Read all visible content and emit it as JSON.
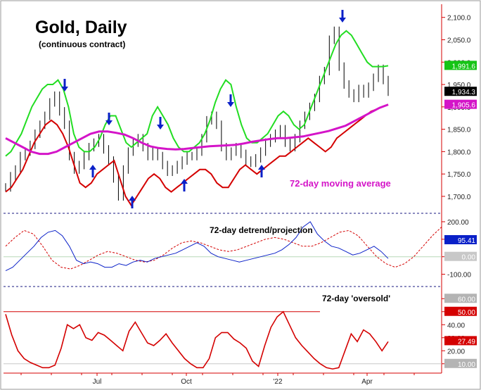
{
  "chart_data": [
    {
      "type": "line",
      "title": "Gold, Daily",
      "subtitle": "(continuous contract)",
      "panel": "price",
      "annotation": "72-day moving average",
      "x_tick_labels": [
        "Jul",
        "Oct",
        "'22",
        "Apr"
      ],
      "y_tick_labels": [
        "1,700.0",
        "1,750.0",
        "1,800.0",
        "1,850.0",
        "1,900.0",
        "1,950.0",
        "2,000.0",
        "2,050.0",
        "2,100.0"
      ],
      "ylim": [
        1670,
        2120
      ],
      "colors": {
        "price": "#000000",
        "upper_band": "#22dd22",
        "lower_band": "#d40000",
        "ma": "#d414c8",
        "arrow": "#0a20c8"
      },
      "series": [
        {
          "name": "Price",
          "values": [
            1720,
            1745,
            1760,
            1790,
            1800,
            1815,
            1840,
            1860,
            1880,
            1910,
            1925,
            1890,
            1860,
            1790,
            1760,
            1770,
            1790,
            1810,
            1820,
            1830,
            1805,
            1780,
            1740,
            1700,
            1760,
            1800,
            1820,
            1830,
            1810,
            1790,
            1800,
            1790,
            1770,
            1755,
            1760,
            1770,
            1780,
            1790,
            1790,
            1800,
            1830,
            1870,
            1880,
            1860,
            1810,
            1790,
            1800,
            1810,
            1795,
            1780,
            1775,
            1785,
            1800,
            1820,
            1830,
            1840,
            1850,
            1820,
            1810,
            1830,
            1860,
            1880,
            1900,
            1920,
            1960,
            1980,
            2050,
            2070,
            1990,
            1950,
            1930,
            1920,
            1940,
            1930,
            1945,
            1965,
            1985,
            1960,
            1934
          ]
        },
        {
          "name": "Upper band",
          "values": [
            1790,
            1800,
            1820,
            1840,
            1870,
            1900,
            1920,
            1940,
            1950,
            1950,
            1960,
            1940,
            1900,
            1840,
            1810,
            1800,
            1800,
            1810,
            1830,
            1860,
            1880,
            1880,
            1850,
            1820,
            1810,
            1820,
            1830,
            1840,
            1880,
            1900,
            1880,
            1860,
            1830,
            1810,
            1800,
            1800,
            1810,
            1820,
            1840,
            1870,
            1910,
            1940,
            1960,
            1950,
            1900,
            1860,
            1830,
            1820,
            1820,
            1830,
            1840,
            1860,
            1880,
            1890,
            1880,
            1860,
            1850,
            1860,
            1890,
            1920,
            1950,
            1980,
            2010,
            2040,
            2060,
            2070,
            2060,
            2040,
            2020,
            2000,
            1990,
            1990,
            1990,
            1992
          ]
        },
        {
          "name": "Lower band",
          "values": [
            1710,
            1720,
            1740,
            1760,
            1790,
            1820,
            1840,
            1860,
            1870,
            1860,
            1840,
            1810,
            1770,
            1730,
            1720,
            1730,
            1750,
            1760,
            1770,
            1780,
            1740,
            1700,
            1680,
            1700,
            1720,
            1740,
            1750,
            1740,
            1720,
            1710,
            1720,
            1730,
            1740,
            1750,
            1760,
            1760,
            1750,
            1730,
            1720,
            1720,
            1740,
            1760,
            1770,
            1760,
            1750,
            1760,
            1770,
            1780,
            1790,
            1790,
            1800,
            1810,
            1820,
            1830,
            1820,
            1810,
            1800,
            1810,
            1830,
            1840,
            1850,
            1860,
            1870,
            1880,
            1890,
            1895,
            1900,
            1905
          ]
        },
        {
          "name": "72-day moving average",
          "values": [
            1830,
            1820,
            1810,
            1800,
            1795,
            1795,
            1800,
            1810,
            1820,
            1830,
            1840,
            1845,
            1845,
            1842,
            1838,
            1830,
            1820,
            1812,
            1808,
            1806,
            1805,
            1806,
            1808,
            1810,
            1812,
            1813,
            1814,
            1815,
            1818,
            1822,
            1825,
            1828,
            1830,
            1830,
            1832,
            1834,
            1838,
            1842,
            1846,
            1852,
            1858,
            1868,
            1878,
            1888,
            1898,
            1905
          ]
        }
      ],
      "last_value_labels": [
        {
          "series": "Upper band",
          "text": "1,991.6",
          "color": "#16c416"
        },
        {
          "series": "Price",
          "text": "1,934.3",
          "color": "#000000"
        },
        {
          "series": "72-day moving average",
          "text": "1,905.6",
          "color": "#d414c8"
        }
      ],
      "cycle_lows_arrows": 6,
      "cycle_highs_arrows": 5
    },
    {
      "type": "line",
      "panel": "detrend",
      "title": "72-day detrend/projection",
      "y_tick_labels": [
        "200.00",
        "100.00",
        "0.00",
        "-100.00"
      ],
      "ylim": [
        -150,
        220
      ],
      "series": [
        {
          "name": "Detrend",
          "values": [
            -80,
            -60,
            -20,
            20,
            60,
            110,
            140,
            150,
            120,
            60,
            -20,
            -40,
            -30,
            -40,
            -60,
            -60,
            -40,
            -50,
            -30,
            -20,
            -30,
            -10,
            0,
            10,
            20,
            40,
            60,
            80,
            60,
            20,
            0,
            -10,
            -20,
            -30,
            -20,
            -10,
            0,
            10,
            20,
            40,
            70,
            110,
            170,
            200,
            130,
            90,
            60,
            50,
            30,
            10,
            20,
            40,
            60,
            30,
            -10
          ]
        },
        {
          "name": "Projection",
          "values": [
            60,
            110,
            150,
            130,
            60,
            -20,
            -60,
            -70,
            -50,
            -20,
            10,
            30,
            20,
            0,
            -20,
            -30,
            -20,
            10,
            50,
            80,
            90,
            80,
            60,
            40,
            30,
            40,
            60,
            80,
            100,
            110,
            100,
            80,
            60,
            60,
            80,
            110,
            140,
            150,
            120,
            60,
            0,
            -40,
            -60,
            -40,
            0,
            60,
            120,
            170
          ]
        }
      ],
      "last_value_labels": [
        {
          "text": "95.41",
          "color": "#0a20c8"
        },
        {
          "text": "0.00",
          "color": "#c8c8c8"
        }
      ]
    },
    {
      "type": "line",
      "panel": "oscillator",
      "title": "72-day 'oversold'",
      "y_tick_labels": [
        "60.00",
        "50.00",
        "40.00",
        "30.00",
        "20.00",
        "10.00"
      ],
      "ylim": [
        5,
        65
      ],
      "reference_line": 50,
      "series": [
        {
          "name": "Oversold oscillator",
          "values": [
            48,
            32,
            20,
            14,
            11,
            9,
            7,
            7,
            9,
            22,
            40,
            37,
            40,
            30,
            28,
            34,
            32,
            28,
            24,
            20,
            35,
            42,
            34,
            26,
            24,
            28,
            33,
            26,
            20,
            14,
            10,
            7,
            7,
            14,
            30,
            34,
            34,
            29,
            26,
            22,
            12,
            8,
            24,
            38,
            46,
            50,
            40,
            30,
            24,
            19,
            14,
            10,
            7,
            6,
            7,
            20,
            33,
            27,
            36,
            33,
            27,
            20,
            27
          ]
        }
      ],
      "last_value_labels": [
        {
          "text": "60.00",
          "color": "#b4b4b4"
        },
        {
          "text": "50.00",
          "color": "#d40000"
        },
        {
          "text": "27.49",
          "color": "#d40000"
        },
        {
          "text": "10.00",
          "color": "#b4b4b4"
        }
      ]
    }
  ]
}
